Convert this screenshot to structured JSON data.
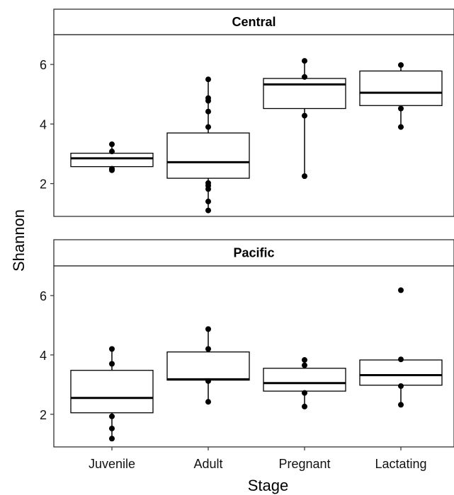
{
  "chart_data": {
    "type": "boxplot",
    "xlabel": "Stage",
    "ylabel": "Shannon",
    "categories": [
      "Juvenile",
      "Adult",
      "Pregnant",
      "Lactating"
    ],
    "y_ticks": [
      2,
      4,
      6
    ],
    "panels": [
      {
        "facet": "Central",
        "ylim": [
          0.9,
          7.0
        ],
        "boxes": [
          {
            "category": "Juvenile",
            "min": 2.45,
            "q1": 2.57,
            "median": 2.85,
            "q3": 3.02,
            "max": 3.32,
            "points": [
              3.32,
              3.08,
              2.5,
              2.45
            ]
          },
          {
            "category": "Adult",
            "min": 1.1,
            "q1": 2.18,
            "median": 2.72,
            "q3": 3.7,
            "max": 5.5,
            "points": [
              5.5,
              4.87,
              4.78,
              4.42,
              3.9,
              2.02,
              1.93,
              1.82,
              1.4,
              1.1
            ]
          },
          {
            "category": "Pregnant",
            "min": 2.25,
            "q1": 4.52,
            "median": 5.33,
            "q3": 5.53,
            "max": 6.12,
            "points": [
              6.12,
              5.58,
              4.28,
              2.25
            ]
          },
          {
            "category": "Lactating",
            "min": 3.9,
            "q1": 4.62,
            "median": 5.05,
            "q3": 5.78,
            "max": 5.98,
            "points": [
              5.98,
              4.52,
              3.9
            ]
          }
        ]
      },
      {
        "facet": "Pacific",
        "ylim": [
          0.9,
          7.0
        ],
        "boxes": [
          {
            "category": "Juvenile",
            "min": 1.18,
            "q1": 2.05,
            "median": 2.55,
            "q3": 3.48,
            "max": 4.2,
            "points": [
              4.2,
              3.7,
              1.93,
              1.52,
              1.18
            ]
          },
          {
            "category": "Adult",
            "min": 2.42,
            "q1": 3.15,
            "median": 3.18,
            "q3": 4.1,
            "max": 4.87,
            "points": [
              4.87,
              4.2,
              3.12,
              2.42
            ]
          },
          {
            "category": "Pregnant",
            "min": 2.26,
            "q1": 2.78,
            "median": 3.05,
            "q3": 3.55,
            "max": 3.83,
            "points": [
              3.83,
              3.65,
              2.72,
              2.26
            ]
          },
          {
            "category": "Lactating",
            "min": 2.32,
            "q1": 2.98,
            "median": 3.32,
            "q3": 3.83,
            "max": 3.85,
            "points": [
              6.18,
              3.85,
              2.95,
              2.32
            ]
          }
        ]
      }
    ]
  }
}
